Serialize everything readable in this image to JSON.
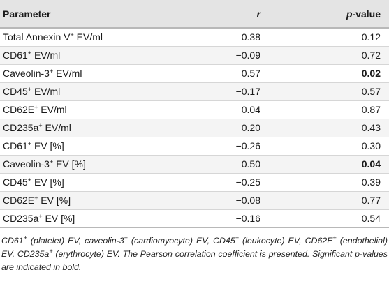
{
  "headers": {
    "parameter": "Parameter",
    "r": "r",
    "p_italic": "p",
    "p_rest": "-value"
  },
  "rows": [
    {
      "name": "Total Annexin V",
      "sup": "+",
      "suffix": " EV/ml",
      "r": "0.38",
      "p": "0.12",
      "significant": false
    },
    {
      "name": "CD61",
      "sup": "+",
      "suffix": " EV/ml",
      "r": "−0.09",
      "p": "0.72",
      "significant": false
    },
    {
      "name": "Caveolin-3",
      "sup": "+",
      "suffix": " EV/ml",
      "r": "0.57",
      "p": "0.02",
      "significant": true
    },
    {
      "name": "CD45",
      "sup": "+",
      "suffix": " EV/ml",
      "r": "−0.17",
      "p": "0.57",
      "significant": false
    },
    {
      "name": "CD62E",
      "sup": "+",
      "suffix": " EV/ml",
      "r": "0.04",
      "p": "0.87",
      "significant": false
    },
    {
      "name": "CD235a",
      "sup": "+",
      "suffix": " EV/ml",
      "r": "0.20",
      "p": "0.43",
      "significant": false
    },
    {
      "name": "CD61",
      "sup": "+",
      "suffix": " EV [%]",
      "r": "−0.26",
      "p": "0.30",
      "significant": false
    },
    {
      "name": "Caveolin-3",
      "sup": "+",
      "suffix": " EV [%]",
      "r": "0.50",
      "p": "0.04",
      "significant": true
    },
    {
      "name": "CD45",
      "sup": "+",
      "suffix": " EV [%]",
      "r": "−0.25",
      "p": "0.39",
      "significant": false
    },
    {
      "name": "CD62E",
      "sup": "+",
      "suffix": " EV [%]",
      "r": "−0.08",
      "p": "0.77",
      "significant": false
    },
    {
      "name": "CD235a",
      "sup": "+",
      "suffix": " EV [%]",
      "r": "−0.16",
      "p": "0.54",
      "significant": false
    }
  ],
  "footnote": {
    "t1": "CD61",
    "t2": " (platelet) EV, caveolin-3",
    "t3": " (cardiomyocyte) EV, CD45",
    "t4": " (leukocyte) EV, CD62E",
    "t5": " (endothelial) EV, CD235a",
    "t6": " (erythrocyte) EV. The Pearson correlation coefficient is presented. Significant ",
    "t7": "p",
    "t8": "-values are indicated in bold.",
    "sup": "+"
  }
}
